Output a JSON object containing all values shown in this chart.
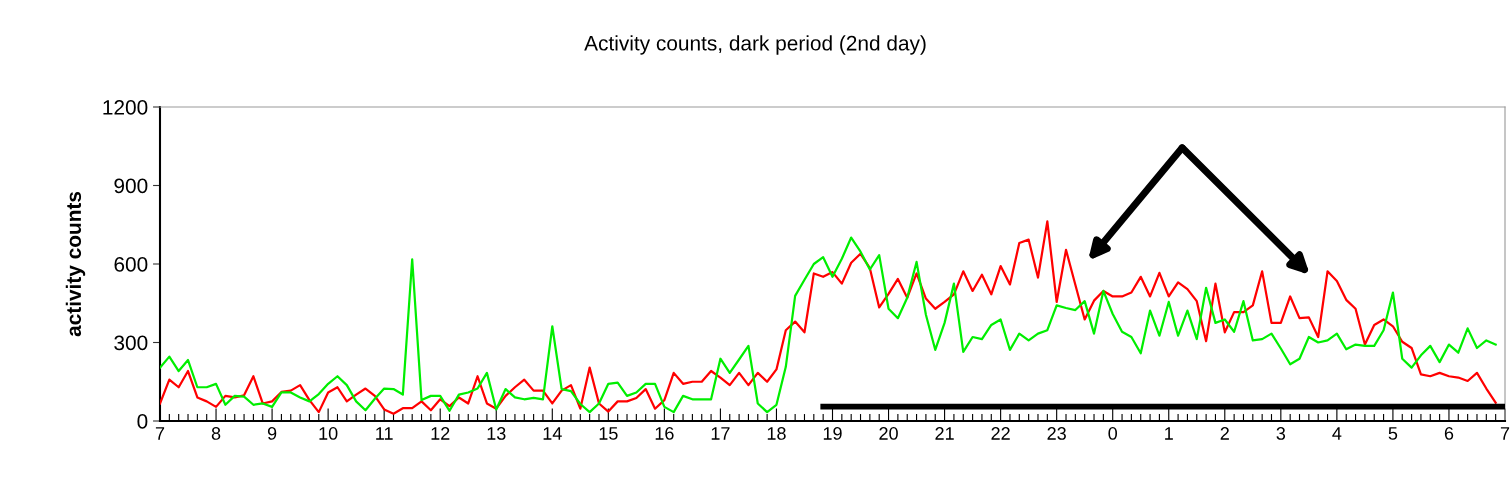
{
  "chart_data": {
    "type": "line",
    "title": "Activity counts, dark period (2nd day)",
    "ylabel": "activity counts",
    "categories": [
      "7",
      null,
      null,
      null,
      null,
      null,
      "8",
      null,
      null,
      null,
      null,
      null,
      "9",
      null,
      null,
      null,
      null,
      null,
      "10",
      null,
      null,
      null,
      null,
      null,
      "11",
      null,
      null,
      null,
      null,
      null,
      "12",
      null,
      null,
      null,
      null,
      null,
      "13",
      null,
      null,
      null,
      null,
      null,
      "14",
      null,
      null,
      null,
      null,
      null,
      "15",
      null,
      null,
      null,
      null,
      null,
      "16",
      null,
      null,
      null,
      null,
      null,
      "17",
      null,
      null,
      null,
      null,
      null,
      "18",
      null,
      null,
      null,
      null,
      null,
      "19",
      null,
      null,
      null,
      null,
      null,
      "20",
      null,
      null,
      null,
      null,
      null,
      "21",
      null,
      null,
      null,
      null,
      null,
      "22",
      null,
      null,
      null,
      null,
      null,
      "23",
      null,
      null,
      null,
      null,
      null,
      "0",
      null,
      null,
      null,
      null,
      null,
      "1",
      null,
      null,
      null,
      null,
      null,
      "2",
      null,
      null,
      null,
      null,
      null,
      "3",
      null,
      null,
      null,
      null,
      null,
      "4",
      null,
      null,
      null,
      null,
      null,
      "5",
      null,
      null,
      null,
      null,
      null,
      "6",
      null,
      null,
      null,
      null,
      null,
      "7"
    ],
    "series": [
      {
        "color": "#ff0000",
        "values": [
          67,
          158,
          129,
          191,
          90,
          75,
          54,
          96,
          90,
          98,
          171,
          67,
          75,
          111,
          116,
          137,
          80,
          34,
          109,
          129,
          75,
          101,
          124,
          96,
          44,
          28,
          49,
          49,
          75,
          41,
          83,
          57,
          90,
          67,
          171,
          67,
          47,
          96,
          129,
          158,
          116,
          116,
          67,
          116,
          137,
          47,
          204,
          67,
          36,
          75,
          75,
          88,
          122,
          47,
          80,
          184,
          142,
          150,
          150,
          191,
          166,
          137,
          184,
          137,
          184,
          150,
          197,
          347,
          380,
          339,
          564,
          551,
          569,
          525,
          605,
          639,
          584,
          434,
          486,
          543,
          471,
          564,
          468,
          429,
          455,
          484,
          572,
          497,
          559,
          484,
          592,
          522,
          680,
          693,
          548,
          763,
          455,
          654,
          521,
          388,
          460,
          497,
          476,
          476,
          491,
          551,
          476,
          566,
          476,
          530,
          504,
          458,
          305,
          525,
          339,
          416,
          416,
          442,
          572,
          375,
          375,
          476,
          393,
          396,
          321,
          572,
          535,
          463,
          429,
          292,
          367,
          388,
          362,
          303,
          279,
          178,
          171,
          184,
          171,
          166,
          153,
          184,
          124,
          70,
          null
        ]
      },
      {
        "color": "#00ee00",
        "values": [
          204,
          246,
          191,
          233,
          129,
          129,
          142,
          62,
          96,
          93,
          62,
          67,
          54,
          109,
          109,
          90,
          75,
          103,
          142,
          171,
          137,
          75,
          41,
          85,
          124,
          122,
          101,
          618,
          80,
          96,
          96,
          39,
          101,
          109,
          124,
          184,
          44,
          122,
          90,
          83,
          88,
          83,
          362,
          122,
          114,
          65,
          34,
          67,
          142,
          147,
          96,
          109,
          142,
          142,
          54,
          34,
          96,
          83,
          83,
          83,
          238,
          184,
          235,
          287,
          67,
          34,
          62,
          207,
          478,
          540,
          600,
          626,
          551,
          620,
          701,
          647,
          579,
          634,
          429,
          393,
          471,
          608,
          406,
          272,
          375,
          525,
          264,
          321,
          313,
          367,
          388,
          272,
          334,
          308,
          334,
          347,
          442,
          432,
          424,
          458,
          334,
          497,
          409,
          341,
          321,
          259,
          422,
          326,
          455,
          326,
          422,
          313,
          509,
          375,
          388,
          341,
          458,
          308,
          313,
          334,
          277,
          217,
          238,
          321,
          300,
          308,
          334,
          274,
          292,
          287,
          287,
          347,
          491,
          238,
          204,
          251,
          287,
          225,
          292,
          261,
          354,
          279,
          308,
          292,
          null
        ]
      },
      {
        "color": "#000000",
        "values": [
          null,
          null,
          null,
          null,
          null,
          null,
          null,
          null,
          null,
          null,
          null,
          null,
          null,
          null,
          null,
          null,
          null,
          null,
          null,
          null,
          null,
          null,
          null,
          null,
          null,
          null,
          null,
          null,
          null,
          null,
          null,
          null,
          null,
          null,
          null,
          null,
          null,
          null,
          null,
          null,
          null,
          null,
          null,
          null,
          null,
          null,
          null,
          null,
          null,
          null,
          null,
          null,
          null,
          null,
          null,
          null,
          null,
          null,
          null,
          null,
          null,
          null,
          null,
          null,
          null,
          null,
          null,
          null,
          null,
          null,
          null,
          55,
          55,
          55,
          55,
          55,
          55,
          55,
          55,
          55,
          55,
          55,
          55,
          55,
          55,
          55,
          55,
          55,
          55,
          55,
          55,
          55,
          55,
          55,
          55,
          55,
          55,
          55,
          55,
          55,
          55,
          55,
          55,
          55,
          55,
          55,
          55,
          55,
          55,
          55,
          55,
          55,
          55,
          55,
          55,
          55,
          55,
          55,
          55,
          55,
          55,
          55,
          55,
          55,
          55,
          55,
          55,
          55,
          55,
          55,
          55,
          55,
          55,
          55,
          55,
          55,
          55,
          55,
          55,
          55,
          55,
          55,
          55,
          55,
          55
        ]
      }
    ],
    "ylim": [
      0,
      1200
    ],
    "yticks": [
      0,
      300,
      600,
      900,
      1200
    ],
    "grid": false,
    "marker": "none",
    "line_style": "solid"
  }
}
